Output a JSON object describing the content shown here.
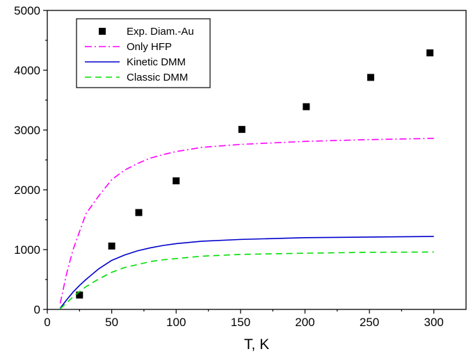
{
  "chart_data": {
    "type": "scatter",
    "title": "",
    "xlabel": "T, K",
    "ylabel": "",
    "xlim": [
      0,
      325
    ],
    "ylim": [
      0,
      5000
    ],
    "xticks": [
      0,
      50,
      100,
      150,
      200,
      250,
      300
    ],
    "yticks": [
      0,
      1000,
      2000,
      3000,
      4000,
      5000
    ],
    "grid": false,
    "legend_position": "top-left",
    "series": [
      {
        "name": "Exp. Diam.-Au",
        "kind": "markers",
        "color": "#000000",
        "x": [
          25,
          50,
          71,
          100,
          151,
          201,
          251,
          297
        ],
        "y": [
          240,
          1060,
          1620,
          2150,
          3010,
          3390,
          3880,
          4290
        ]
      },
      {
        "name": "Only HFP",
        "kind": "line",
        "style": "dashdot",
        "color": "#ff00ff",
        "x": [
          10,
          15,
          20,
          25,
          30,
          40,
          50,
          60,
          70,
          80,
          90,
          100,
          120,
          150,
          200,
          250,
          300
        ],
        "y": [
          100,
          600,
          1000,
          1300,
          1600,
          1900,
          2170,
          2330,
          2440,
          2530,
          2590,
          2640,
          2710,
          2760,
          2810,
          2840,
          2860
        ]
      },
      {
        "name": "Kinetic DMM",
        "kind": "line",
        "style": "solid",
        "color": "#0000cc",
        "x": [
          10,
          15,
          20,
          25,
          30,
          40,
          50,
          60,
          70,
          80,
          90,
          100,
          120,
          150,
          200,
          250,
          300
        ],
        "y": [
          20,
          160,
          290,
          400,
          500,
          680,
          820,
          910,
          980,
          1030,
          1070,
          1100,
          1140,
          1170,
          1200,
          1210,
          1220
        ]
      },
      {
        "name": "Classic DMM",
        "kind": "line",
        "style": "dashed",
        "color": "#00dd00",
        "x": [
          10,
          15,
          20,
          25,
          30,
          40,
          50,
          60,
          70,
          80,
          90,
          100,
          120,
          150,
          200,
          250,
          300
        ],
        "y": [
          10,
          110,
          210,
          300,
          380,
          510,
          620,
          700,
          750,
          800,
          830,
          850,
          890,
          920,
          940,
          955,
          960
        ]
      }
    ]
  }
}
